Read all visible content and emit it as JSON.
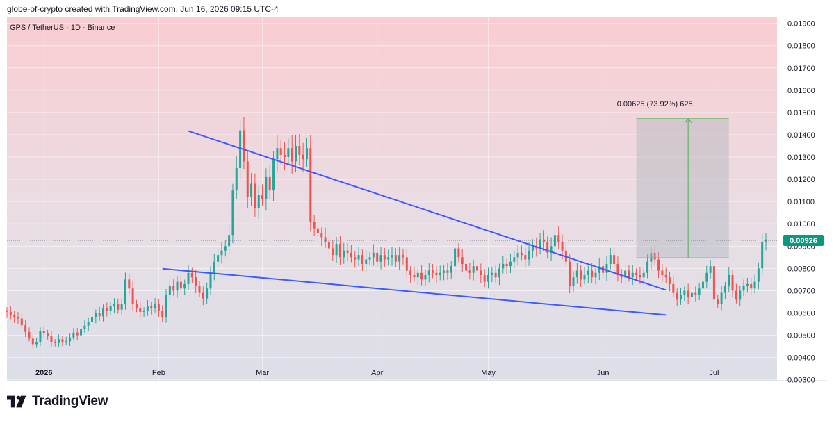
{
  "caption": "globe-of-crypto created with TradingView.com, Jun 16, 2026 09:15 UTC-4",
  "brand": {
    "name": "TradingView",
    "logo_icon": "tradingview-logo-icon"
  },
  "colors": {
    "up": "#26a69a",
    "down": "#ef5350",
    "trendline": "#3d5afe",
    "measure_line": "#4caf50",
    "measure_fill": "#b2b5be",
    "price_label": "#089981"
  },
  "chart_data": {
    "type": "candlestick",
    "symbol_title": "GPS / TetherUS · 1D · Binance",
    "y_ticks": [
      "0.01900",
      "0.01800",
      "0.01700",
      "0.01600",
      "0.01500",
      "0.01400",
      "0.01300",
      "0.01200",
      "0.01100",
      "0.01000",
      "0.00900",
      "0.00800",
      "0.00700",
      "0.00600",
      "0.00500",
      "0.00400",
      "0.00300"
    ],
    "ylim": [
      0.00296,
      0.0193
    ],
    "x_ticks": [
      {
        "label": "2026",
        "date": "2026-01-01",
        "bold": true
      },
      {
        "label": "Feb",
        "date": "2026-02-01",
        "bold": false
      },
      {
        "label": "Mar",
        "date": "2026-03-01",
        "bold": false
      },
      {
        "label": "Apr",
        "date": "2026-04-01",
        "bold": false
      },
      {
        "label": "May",
        "date": "2026-05-01",
        "bold": false
      },
      {
        "label": "Jun",
        "date": "2026-06-01",
        "bold": false
      },
      {
        "label": "Jul",
        "date": "2026-07-01",
        "bold": false
      }
    ],
    "xlim": [
      "2025-12-22",
      "2026-07-18"
    ],
    "start_date": "2025-12-22",
    "current_price": "0.00926",
    "current_price_value": 0.00926,
    "closes": [
      0.00605,
      0.0059,
      0.0058,
      0.00575,
      0.00545,
      0.00515,
      0.00485,
      0.0046,
      0.0047,
      0.0052,
      0.0051,
      0.00495,
      0.0047,
      0.00465,
      0.00482,
      0.0047,
      0.00473,
      0.0049,
      0.00512,
      0.005,
      0.00528,
      0.00543,
      0.0056,
      0.0058,
      0.006,
      0.00585,
      0.0062,
      0.0061,
      0.0063,
      0.0064,
      0.00615,
      0.0064,
      0.0075,
      0.0071,
      0.0064,
      0.0062,
      0.00605,
      0.0061,
      0.0063,
      0.0062,
      0.0064,
      0.0061,
      0.0058,
      0.0068,
      0.0072,
      0.007,
      0.0074,
      0.0071,
      0.0073,
      0.0078,
      0.0076,
      0.0072,
      0.0069,
      0.00665,
      0.0071,
      0.0078,
      0.0083,
      0.0086,
      0.0088,
      0.009,
      0.0095,
      0.0115,
      0.0125,
      0.0142,
      0.0128,
      0.0112,
      0.0118,
      0.0107,
      0.0113,
      0.0111,
      0.0121,
      0.0115,
      0.0129,
      0.0134,
      0.0131,
      0.013,
      0.0134,
      0.0128,
      0.0135,
      0.0131,
      0.0129,
      0.0134,
      0.0101,
      0.0098,
      0.0096,
      0.0094,
      0.0092,
      0.0089,
      0.0086,
      0.0091,
      0.0085,
      0.0088,
      0.0087,
      0.0085,
      0.0084,
      0.0086,
      0.0082,
      0.0084,
      0.0085,
      0.0087,
      0.0083,
      0.0086,
      0.0084,
      0.0085,
      0.0086,
      0.0083,
      0.0086,
      0.0085,
      0.0079,
      0.0077,
      0.0076,
      0.0078,
      0.0075,
      0.0077,
      0.0079,
      0.0078,
      0.0077,
      0.0078,
      0.0079,
      0.0078,
      0.0081,
      0.0089,
      0.0085,
      0.0082,
      0.0079,
      0.0078,
      0.0081,
      0.0079,
      0.0077,
      0.0074,
      0.0077,
      0.0078,
      0.0076,
      0.008,
      0.0082,
      0.0081,
      0.0083,
      0.0085,
      0.0087,
      0.0086,
      0.0084,
      0.0088,
      0.009,
      0.0089,
      0.0093,
      0.0092,
      0.0087,
      0.009,
      0.0095,
      0.0092,
      0.0088,
      0.0083,
      0.0072,
      0.0076,
      0.0079,
      0.0075,
      0.0077,
      0.0079,
      0.0076,
      0.0078,
      0.0081,
      0.0078,
      0.0082,
      0.0086,
      0.0082,
      0.0077,
      0.0076,
      0.0079,
      0.0076,
      0.0078,
      0.0077,
      0.0076,
      0.0078,
      0.0083,
      0.0087,
      0.0084,
      0.0079,
      0.0077,
      0.0076,
      0.0073,
      0.0069,
      0.0066,
      0.0068,
      0.007,
      0.0067,
      0.0069,
      0.0068,
      0.0071,
      0.0074,
      0.0078,
      0.0081,
      0.0066,
      0.0064,
      0.0069,
      0.0072,
      0.0077,
      0.007,
      0.0066,
      0.007,
      0.0072,
      0.0073,
      0.0071,
      0.0074,
      0.008,
      0.0092,
      0.0093
    ]
  }
}
